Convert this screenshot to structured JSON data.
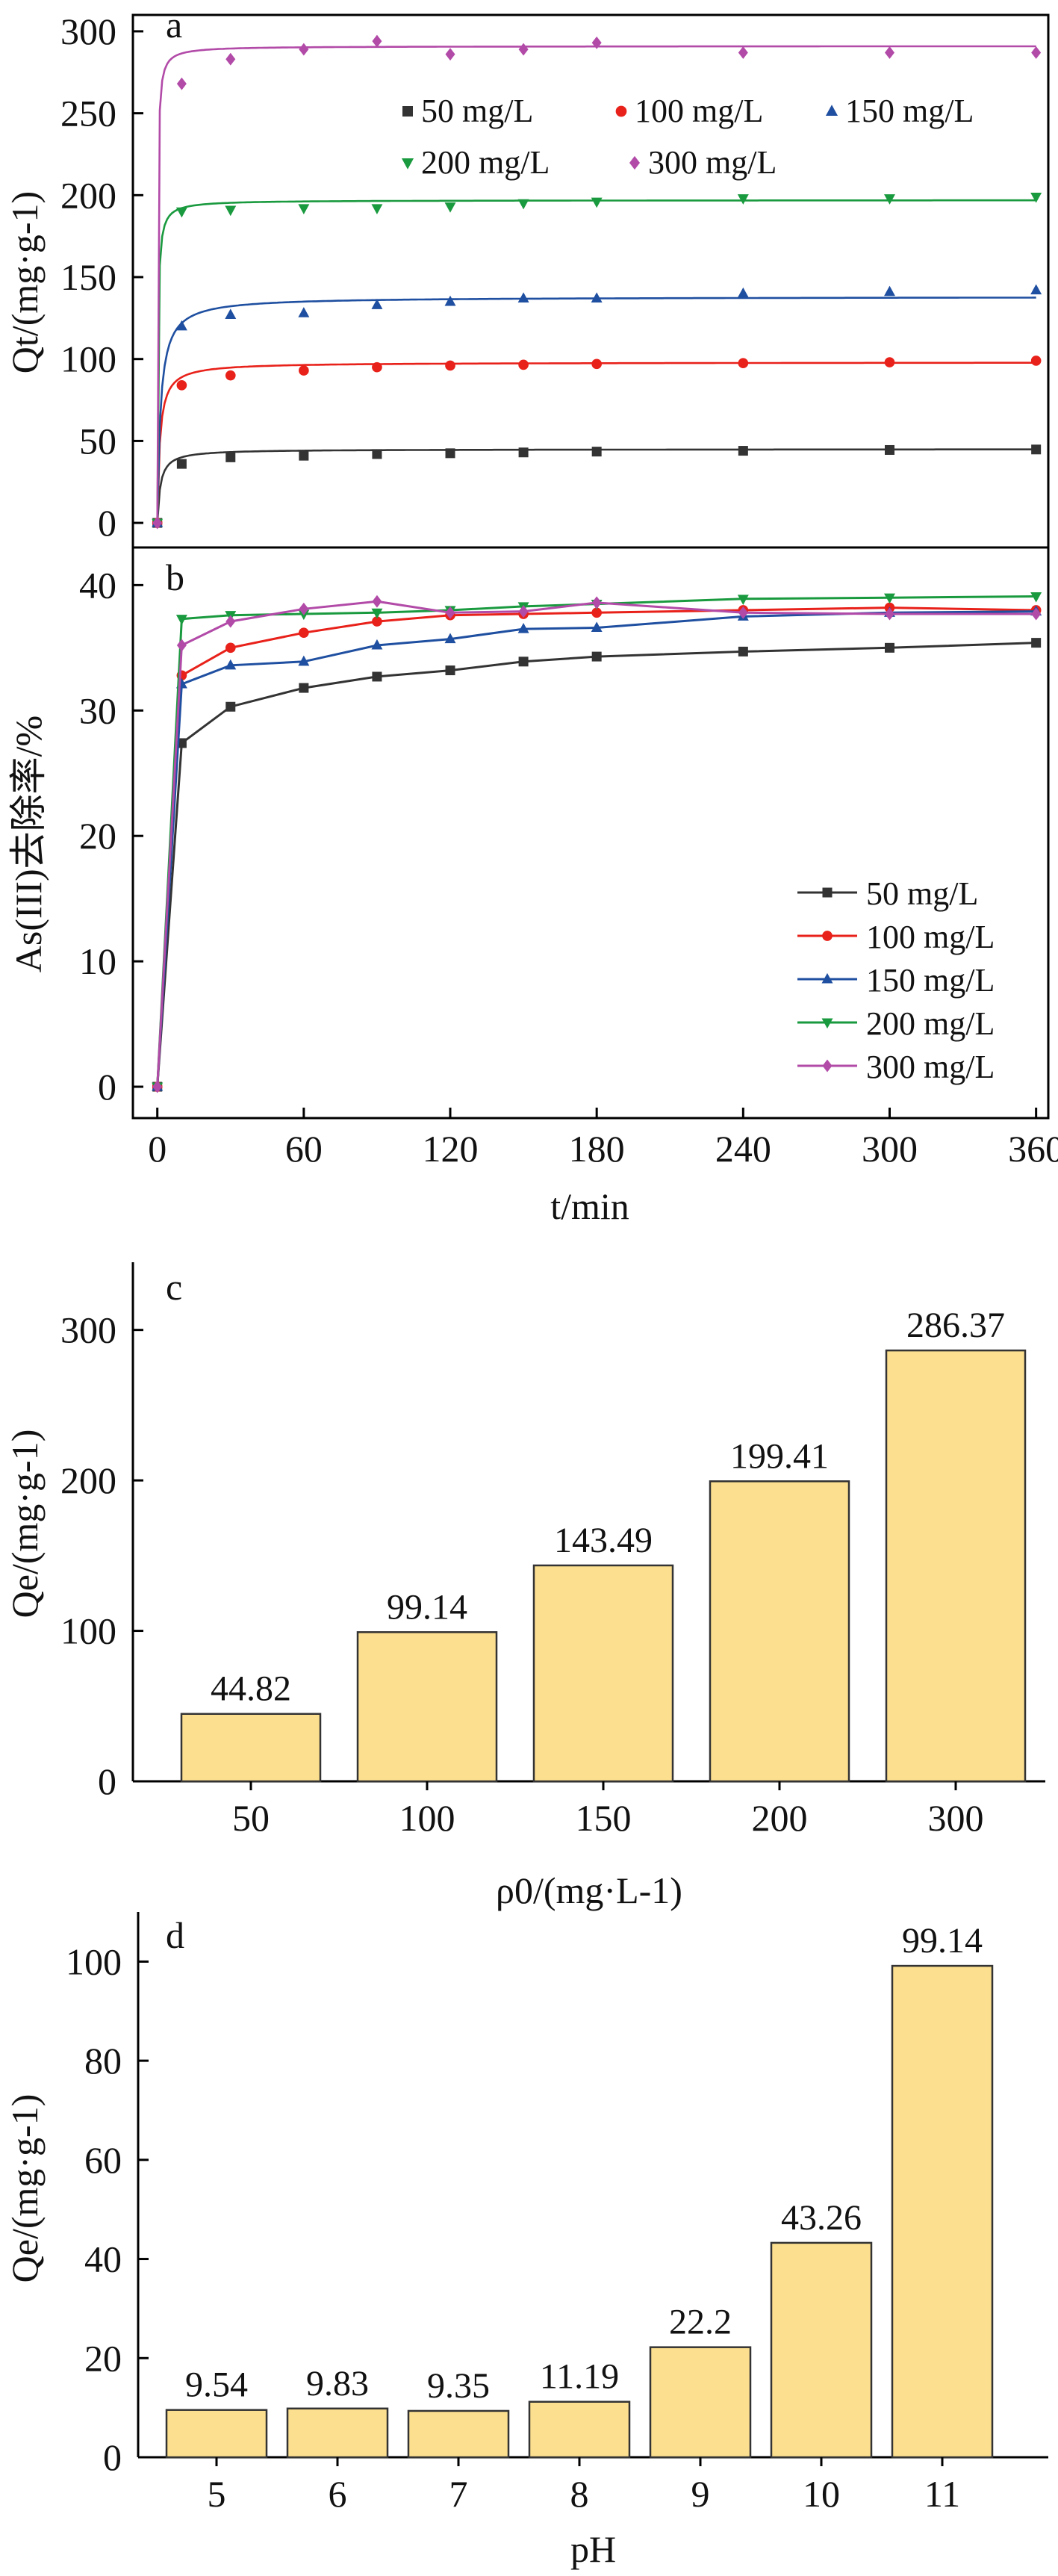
{
  "chart_data": [
    {
      "panel": "a",
      "type": "scatter",
      "ylabel": "Qt/(mg·g-1)",
      "xlim": [
        -10,
        365
      ],
      "ylim": [
        -15,
        310
      ],
      "yticks": [
        0,
        50,
        100,
        150,
        200,
        250,
        300
      ],
      "legend_position": "top-right",
      "series": [
        {
          "name": "50 mg/L",
          "color": "#333333",
          "marker": "square",
          "x": [
            0,
            10,
            30,
            60,
            90,
            120,
            150,
            180,
            240,
            300,
            360
          ],
          "y": [
            0,
            36,
            40,
            41,
            42,
            42.5,
            43,
            43.5,
            44,
            44.5,
            44.8
          ],
          "fit": {
            "qe": 45,
            "k": 0.018
          }
        },
        {
          "name": "100 mg/L",
          "color": "#e8211a",
          "marker": "circle",
          "x": [
            0,
            10,
            30,
            60,
            90,
            120,
            150,
            180,
            240,
            300,
            360
          ],
          "y": [
            0,
            84,
            90,
            93,
            95,
            96,
            96.5,
            97,
            97.5,
            98,
            99
          ],
          "fit": {
            "qe": 98,
            "k": 0.01
          }
        },
        {
          "name": "150 mg/L",
          "color": "#1f4fa0",
          "marker": "triangle-up",
          "x": [
            0,
            10,
            30,
            60,
            90,
            120,
            150,
            180,
            240,
            300,
            360
          ],
          "y": [
            0,
            120,
            127,
            128,
            133,
            135,
            137,
            137,
            140,
            141,
            142
          ],
          "fit": {
            "qe": 138,
            "k": 0.0055
          }
        },
        {
          "name": "200 mg/L",
          "color": "#1a9a3f",
          "marker": "triangle-down",
          "x": [
            0,
            10,
            30,
            60,
            90,
            120,
            150,
            180,
            240,
            300,
            360
          ],
          "y": [
            0,
            190,
            191,
            192,
            192,
            193,
            195,
            196,
            198,
            198,
            199
          ],
          "fit": {
            "qe": 197,
            "k": 0.02
          }
        },
        {
          "name": "300 mg/L",
          "color": "#b24aa8",
          "marker": "diamond",
          "x": [
            0,
            10,
            30,
            60,
            90,
            120,
            150,
            180,
            240,
            300,
            360
          ],
          "y": [
            0,
            268,
            283,
            289,
            294,
            286,
            289,
            293,
            287,
            287,
            287
          ],
          "fit": {
            "qe": 291,
            "k": 0.022
          }
        }
      ]
    },
    {
      "panel": "b",
      "type": "line",
      "ylabel": "As(III)去除率/%",
      "xlabel": "t/min",
      "xlim": [
        -10,
        365
      ],
      "ylim": [
        -2.5,
        43
      ],
      "xticks": [
        0,
        60,
        120,
        180,
        240,
        300,
        360
      ],
      "yticks": [
        0,
        10,
        20,
        30,
        40
      ],
      "legend_position": "bottom-right",
      "series": [
        {
          "name": "50 mg/L",
          "color": "#333333",
          "marker": "square",
          "x": [
            0,
            10,
            30,
            60,
            90,
            120,
            150,
            180,
            240,
            300,
            360
          ],
          "y": [
            0,
            27.4,
            30.3,
            31.8,
            32.7,
            33.2,
            33.9,
            34.3,
            34.7,
            35.0,
            35.4
          ]
        },
        {
          "name": "100 mg/L",
          "color": "#e8211a",
          "marker": "circle",
          "x": [
            0,
            10,
            30,
            60,
            90,
            120,
            150,
            180,
            240,
            300,
            360
          ],
          "y": [
            0,
            32.8,
            35.0,
            36.2,
            37.1,
            37.6,
            37.7,
            37.8,
            38.0,
            38.2,
            38.0
          ]
        },
        {
          "name": "150 mg/L",
          "color": "#1f4fa0",
          "marker": "triangle-up",
          "x": [
            0,
            10,
            30,
            60,
            90,
            120,
            150,
            180,
            240,
            300,
            360
          ],
          "y": [
            0,
            32.1,
            33.6,
            33.9,
            35.2,
            35.7,
            36.5,
            36.6,
            37.5,
            37.8,
            37.9
          ]
        },
        {
          "name": "200 mg/L",
          "color": "#1a9a3f",
          "marker": "triangle-down",
          "x": [
            0,
            10,
            30,
            60,
            90,
            120,
            150,
            180,
            240,
            300,
            360
          ],
          "y": [
            0,
            37.3,
            37.6,
            37.7,
            37.8,
            38.0,
            38.3,
            38.5,
            38.9,
            39.0,
            39.1
          ]
        },
        {
          "name": "300 mg/L",
          "color": "#b24aa8",
          "marker": "diamond",
          "x": [
            0,
            10,
            30,
            60,
            90,
            120,
            150,
            180,
            240,
            300,
            360
          ],
          "y": [
            0,
            35.2,
            37.1,
            38.1,
            38.7,
            37.8,
            37.9,
            38.6,
            37.8,
            37.7,
            37.7
          ]
        }
      ]
    },
    {
      "panel": "c",
      "type": "bar",
      "ylabel": "Qe/(mg·g-1)",
      "xlabel": "ρ0/(mg·L-1)",
      "ylim": [
        0,
        345
      ],
      "yticks": [
        0,
        100,
        200,
        300
      ],
      "categories": [
        "50",
        "100",
        "150",
        "200",
        "300"
      ],
      "values": [
        44.82,
        99.14,
        143.49,
        199.41,
        286.37
      ],
      "value_labels": [
        "44.82",
        "99.14",
        "143.49",
        "199.41",
        "286.37"
      ],
      "bar_color": "#fde08f"
    },
    {
      "panel": "d",
      "type": "bar",
      "ylabel": "Qe/(mg·g-1)",
      "xlabel": "pH",
      "ylim": [
        0,
        110
      ],
      "yticks": [
        0,
        20,
        40,
        60,
        80,
        100
      ],
      "categories": [
        "5",
        "6",
        "7",
        "8",
        "9",
        "10",
        "11"
      ],
      "values": [
        9.54,
        9.83,
        9.35,
        11.19,
        22.2,
        43.26,
        99.14
      ],
      "value_labels": [
        "9.54",
        "9.83",
        "9.35",
        "11.19",
        "22.2",
        "43.26",
        "99.14"
      ],
      "bar_color": "#fde08f"
    }
  ]
}
